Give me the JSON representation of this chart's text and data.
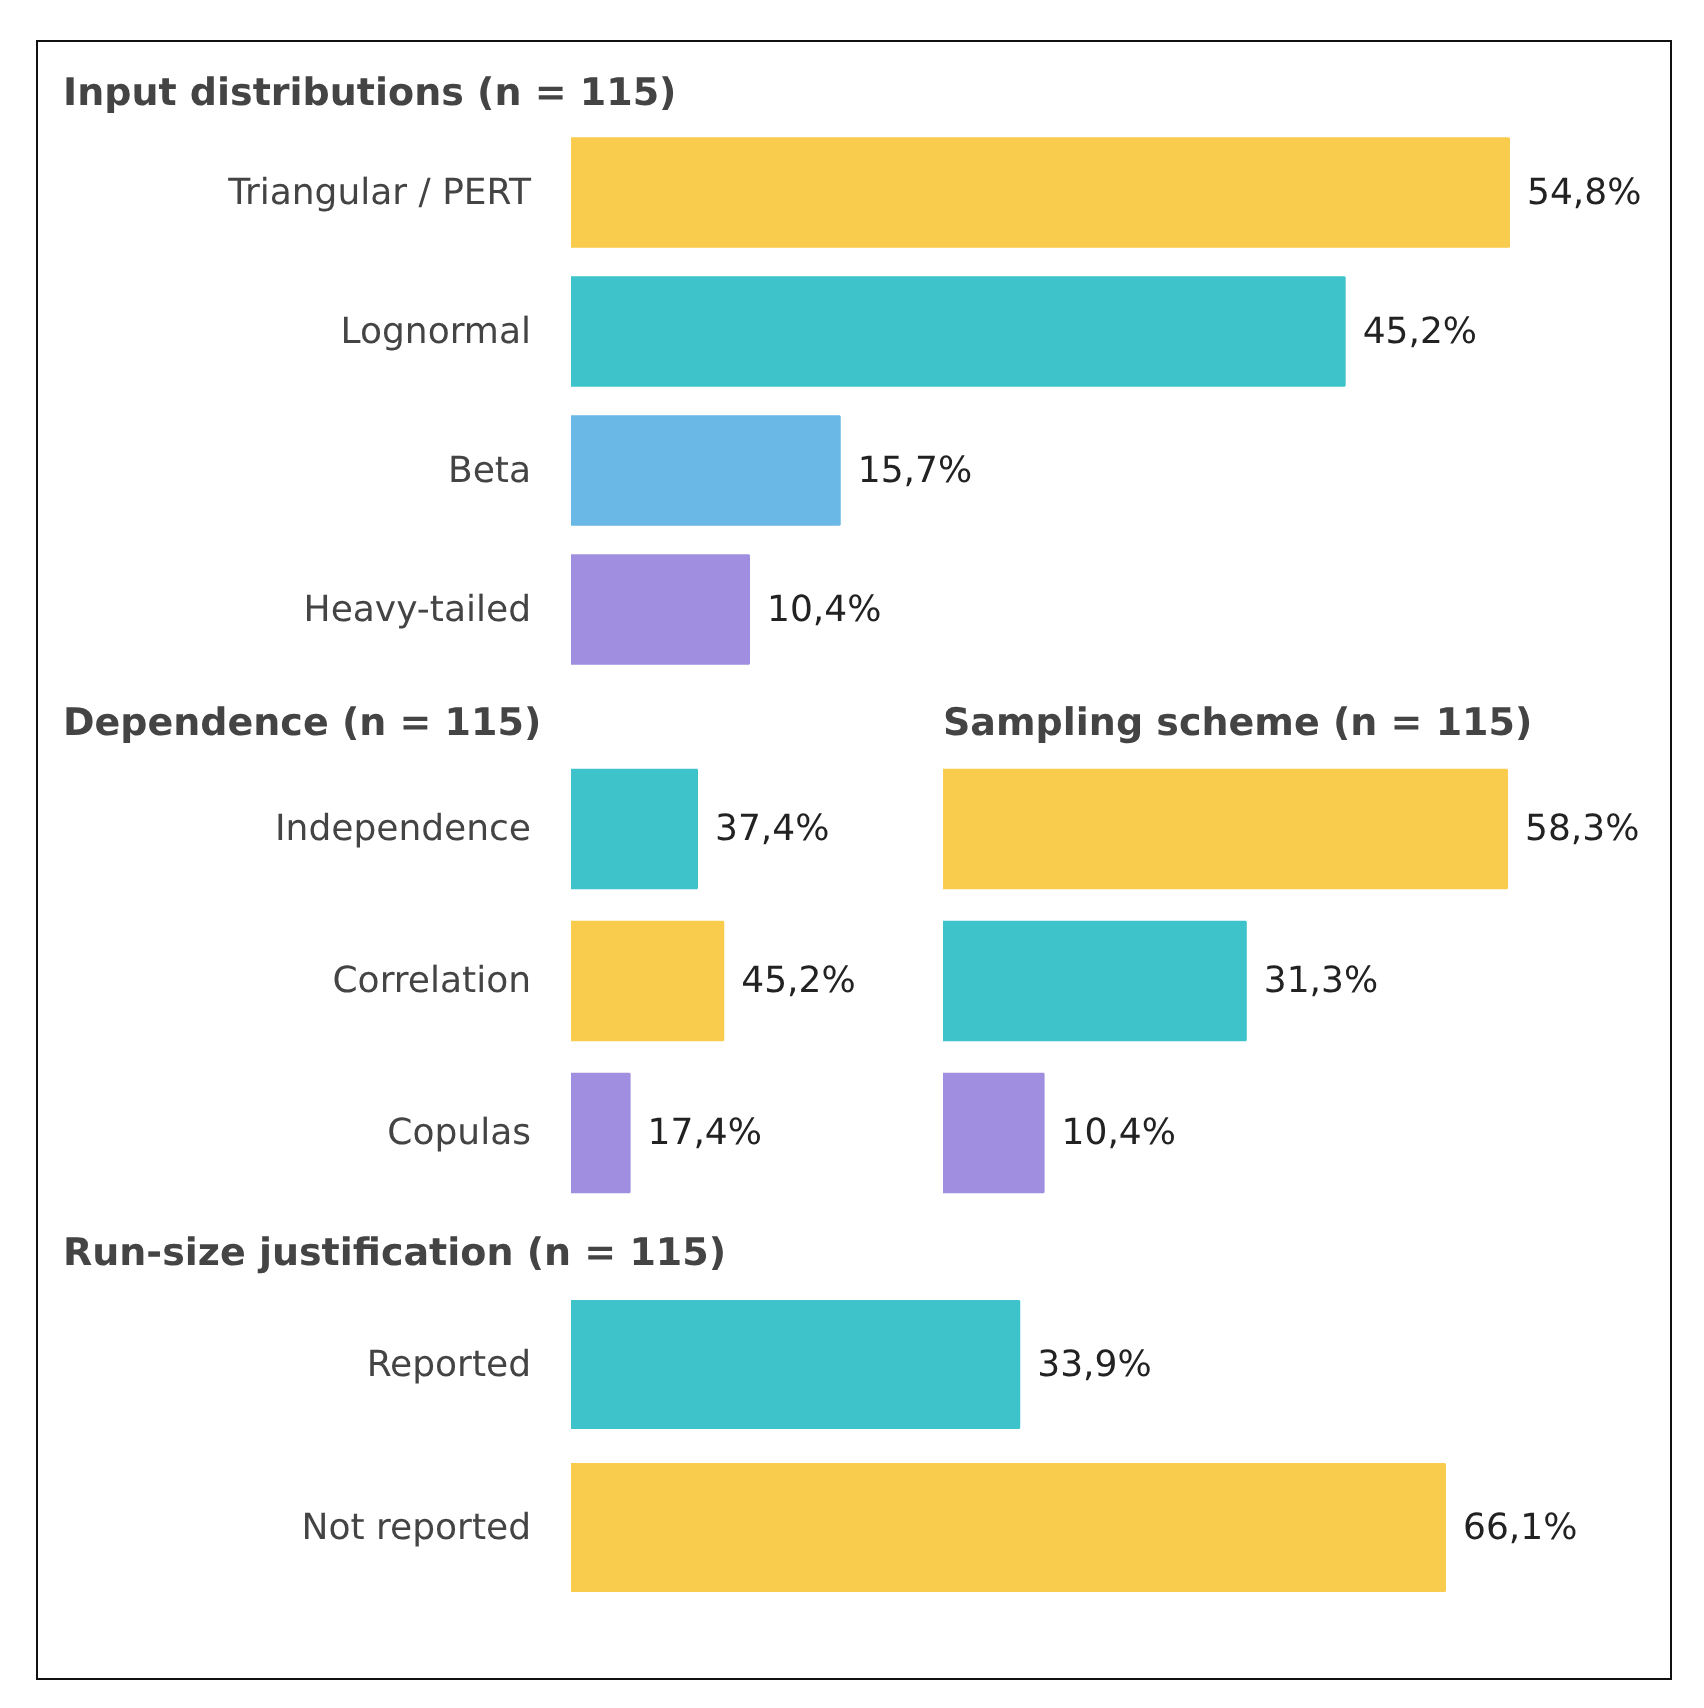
{
  "chart_data": [
    {
      "type": "bar",
      "orientation": "horizontal",
      "title": "Input distributions (n = 115)",
      "categories": [
        "Triangular / PERT",
        "Lognormal",
        "Beta",
        "Heavy-tailed"
      ],
      "values": [
        54.8,
        45.2,
        15.7,
        10.4
      ],
      "colors": [
        "#f9cc4e",
        "#3ec3cb",
        "#6ab8e6",
        "#a08ee0"
      ],
      "value_labels": [
        "54,8%",
        "45,2%",
        "15,7%",
        "10,4%"
      ]
    },
    {
      "type": "bar",
      "orientation": "horizontal",
      "title": "Dependence (n = 115)",
      "categories": [
        "Independence",
        "Correlation",
        "Copulas"
      ],
      "values": [
        37.4,
        45.2,
        17.4
      ],
      "colors": [
        "#3ec3cb",
        "#f9cc4e",
        "#a08ee0"
      ],
      "value_labels": [
        "37,4%",
        "45,2%",
        "17,4%"
      ]
    },
    {
      "type": "bar",
      "orientation": "horizontal",
      "title": "Sampling scheme (n = 115)",
      "categories": [
        null,
        null,
        null
      ],
      "values": [
        58.3,
        31.3,
        10.4
      ],
      "colors": [
        "#f9cc4e",
        "#3ec3cb",
        "#a08ee0"
      ],
      "value_labels": [
        "58,3%",
        "31,3%",
        "10,4%"
      ]
    },
    {
      "type": "bar",
      "orientation": "horizontal",
      "title": "Run-size justification (n = 115)",
      "categories": [
        "Reported",
        "Not reported"
      ],
      "values": [
        33.9,
        66.1
      ],
      "colors": [
        "#3ec3cb",
        "#f9cc4e"
      ],
      "value_labels": [
        "33,9%",
        "66,1%"
      ]
    }
  ]
}
